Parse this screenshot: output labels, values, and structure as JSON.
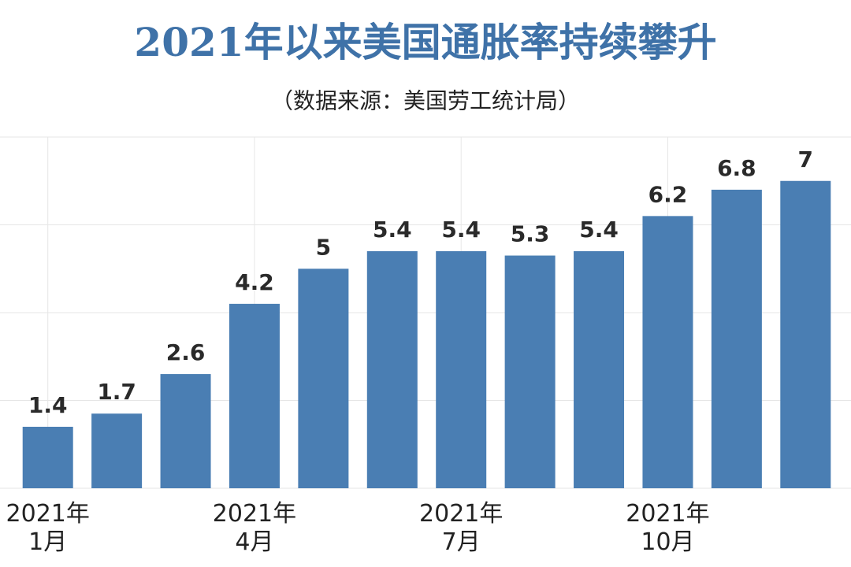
{
  "chart_data": {
    "type": "bar",
    "title": "2021年以来美国通胀率持续攀升",
    "subtitle": "（数据来源：美国劳工统计局）",
    "categories": [
      "2021年\n1月",
      null,
      null,
      "2021年\n4月",
      null,
      null,
      "2021年\n7月",
      null,
      null,
      "2021年\n10月",
      null,
      null
    ],
    "values": [
      1.4,
      1.7,
      2.6,
      4.2,
      5,
      5.4,
      5.4,
      5.3,
      5.4,
      6.2,
      6.8,
      7
    ],
    "color": "#4a7eb3",
    "ylim": [
      0,
      8
    ],
    "yticks": [
      0,
      2,
      4,
      6,
      8
    ],
    "grid": true
  }
}
